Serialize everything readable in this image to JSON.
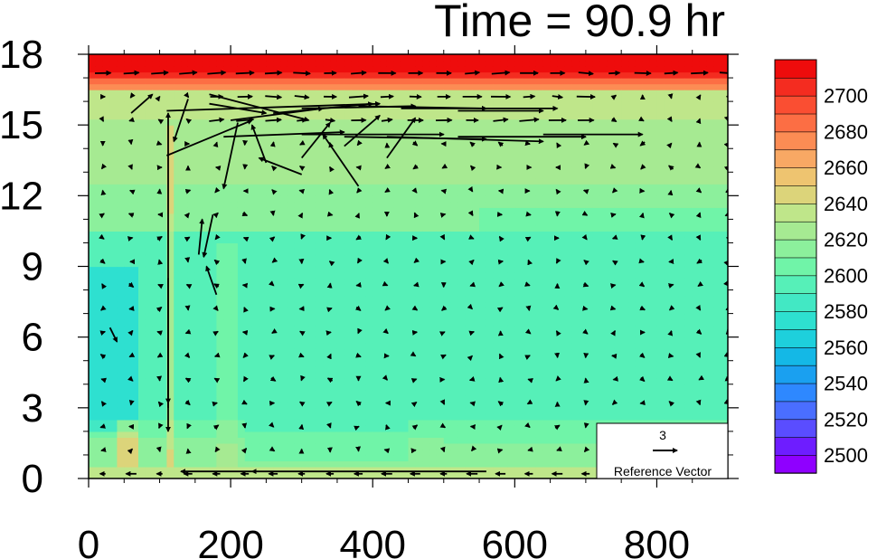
{
  "chart_data": {
    "type": "heatmap",
    "title": "Time = 90.9 hr",
    "xlabel": "",
    "ylabel": "",
    "x_ticks": [
      "0",
      "200",
      "400",
      "600",
      "800"
    ],
    "x_tick_values": [
      0,
      200,
      400,
      600,
      800
    ],
    "y_ticks": [
      "0",
      "3",
      "6",
      "9",
      "12",
      "15",
      "18"
    ],
    "y_tick_values": [
      0,
      3,
      6,
      9,
      12,
      15,
      18
    ],
    "xlim": [
      0,
      900
    ],
    "ylim": [
      0,
      18
    ],
    "colorbar": {
      "labels": [
        "2500",
        "2520",
        "2540",
        "2560",
        "2580",
        "2600",
        "2620",
        "2640",
        "2660",
        "2680",
        "2700"
      ],
      "levels": [
        2490,
        2500,
        2510,
        2520,
        2530,
        2540,
        2550,
        2560,
        2570,
        2580,
        2590,
        2600,
        2610,
        2620,
        2630,
        2640,
        2650,
        2660,
        2670,
        2680,
        2690,
        2700,
        2710
      ],
      "colors": [
        "#8f00ff",
        "#6e1dff",
        "#5a4dff",
        "#4a6eff",
        "#2e88ff",
        "#1aa0f0",
        "#14b8e6",
        "#1ed0dc",
        "#2ee0d0",
        "#42e8c4",
        "#56f0b8",
        "#70f4a8",
        "#8cf09c",
        "#a6ea92",
        "#bfe68a",
        "#dcd47a",
        "#eec470",
        "#f8a864",
        "#fc8c54",
        "#fc6e44",
        "#fa4e32",
        "#f42c20",
        "#ee0c0c"
      ]
    },
    "reference_vector": {
      "magnitude_label": "3",
      "label": "Reference Vector"
    }
  }
}
